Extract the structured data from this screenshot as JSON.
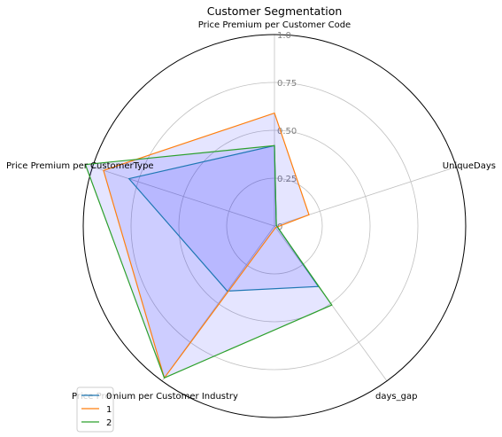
{
  "chart_data": {
    "type": "radar",
    "title": "Customer Segmentation",
    "axes": [
      "Price Premium per Customer Code",
      "UniqueDays",
      "days_gap",
      "Price Premium per Customer Industry",
      "Price Premium per CustomerType"
    ],
    "rlim": [
      0,
      1.0
    ],
    "radial_ticks": [
      0,
      0.25,
      0.5,
      0.75,
      1.0
    ],
    "radial_tick_labels": [
      "0",
      "0.25",
      "0.50",
      "0.75",
      "1.0"
    ],
    "grid": true,
    "legend_position": "lower-left",
    "series": [
      {
        "name": "0",
        "color": "#1f77b4",
        "values": [
          0.42,
          0.01,
          0.39,
          0.42,
          0.8
        ]
      },
      {
        "name": "1",
        "color": "#ff7f0e",
        "values": [
          0.59,
          0.19,
          0.01,
          0.98,
          0.94
        ]
      },
      {
        "name": "2",
        "color": "#2ca02c",
        "values": [
          0.42,
          0.01,
          0.51,
          0.98,
          1.04
        ]
      }
    ],
    "fill_color": "#0000ff"
  }
}
